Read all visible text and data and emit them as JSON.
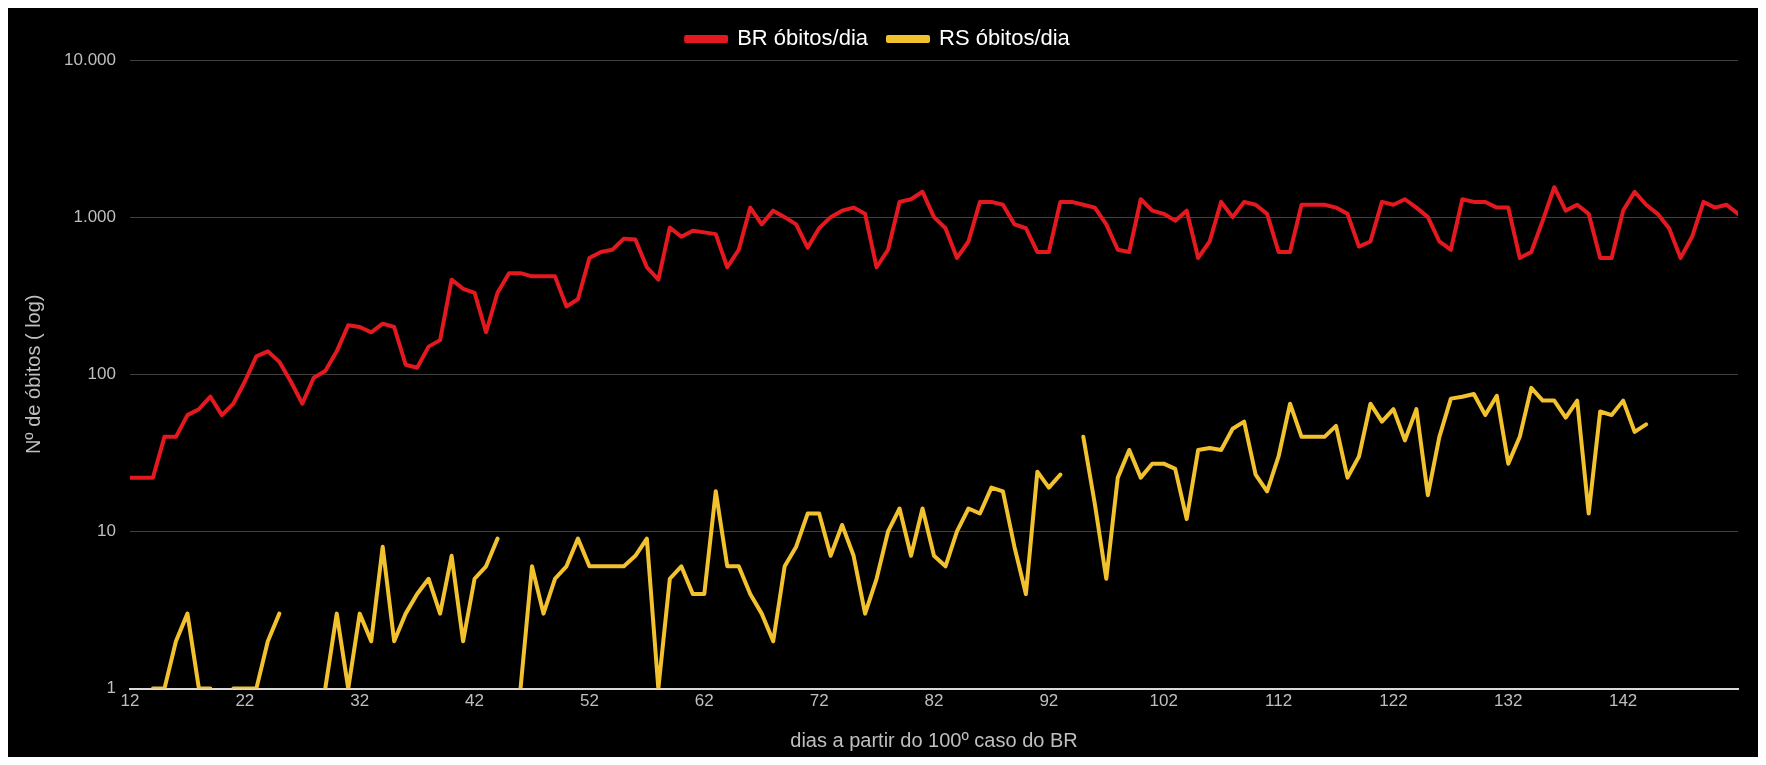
{
  "chart_data": {
    "type": "line",
    "xlabel": "dias a partir do 100º caso do BR",
    "ylabel": "Nº de óbitos ( log)",
    "x": [
      12,
      13,
      14,
      15,
      16,
      17,
      18,
      19,
      20,
      21,
      22,
      23,
      24,
      25,
      26,
      27,
      28,
      29,
      30,
      31,
      32,
      33,
      34,
      35,
      36,
      37,
      38,
      39,
      40,
      41,
      42,
      43,
      44,
      45,
      46,
      47,
      48,
      49,
      50,
      51,
      52,
      53,
      54,
      55,
      56,
      57,
      58,
      59,
      60,
      61,
      62,
      63,
      64,
      65,
      66,
      67,
      68,
      69,
      70,
      71,
      72,
      73,
      74,
      75,
      76,
      77,
      78,
      79,
      80,
      81,
      82,
      83,
      84,
      85,
      86,
      87,
      88,
      89,
      90,
      91,
      92,
      93,
      94,
      95,
      96,
      97,
      98,
      99,
      100,
      101,
      102,
      103,
      104,
      105,
      106,
      107,
      108,
      109,
      110,
      111,
      112,
      113,
      114,
      115,
      116,
      117,
      118,
      119,
      120,
      121,
      122,
      123,
      124,
      125,
      126,
      127,
      128,
      129,
      130,
      131,
      132,
      133,
      134,
      135,
      136,
      137,
      138,
      139,
      140,
      141,
      142,
      143,
      144,
      145,
      146,
      147,
      148,
      149,
      150,
      151,
      152
    ],
    "series": [
      {
        "name": "BR óbitos/dia",
        "color": "#e3191f",
        "values": [
          22,
          22,
          22,
          40,
          40,
          55,
          60,
          72,
          55,
          65,
          90,
          130,
          140,
          120,
          90,
          65,
          95,
          105,
          140,
          205,
          200,
          185,
          210,
          200,
          115,
          110,
          150,
          165,
          400,
          350,
          330,
          185,
          330,
          440,
          440,
          420,
          420,
          420,
          270,
          300,
          550,
          600,
          620,
          730,
          720,
          480,
          400,
          860,
          750,
          820,
          800,
          780,
          480,
          620,
          1150,
          900,
          1100,
          1000,
          900,
          640,
          850,
          1000,
          1100,
          1150,
          1050,
          480,
          620,
          1250,
          1300,
          1450,
          1000,
          850,
          550,
          700,
          1250,
          1250,
          1200,
          900,
          850,
          600,
          600,
          1250,
          1250,
          1200,
          1150,
          900,
          620,
          600,
          1300,
          1100,
          1050,
          950,
          1100,
          550,
          700,
          1250,
          1000,
          1250,
          1200,
          1050,
          600,
          600,
          1200,
          1200,
          1200,
          1150,
          1050,
          650,
          700,
          1250,
          1200,
          1300,
          1150,
          1000,
          700,
          620,
          1300,
          1250,
          1250,
          1150,
          1150,
          550,
          600,
          950,
          1550,
          1100,
          1200,
          1050,
          550,
          550,
          1100,
          1450,
          1200,
          1050,
          850,
          550,
          750,
          1250,
          1150,
          1200,
          1050
        ]
      },
      {
        "name": "RS óbitos/dia",
        "color": "#f2c12e",
        "values": [
          null,
          null,
          1,
          1,
          2,
          3,
          1,
          1,
          null,
          1,
          1,
          1,
          2,
          3,
          null,
          null,
          null,
          1,
          3,
          1,
          3,
          2,
          8,
          2,
          3,
          4,
          5,
          3,
          7,
          2,
          5,
          6,
          9,
          null,
          1,
          6,
          3,
          5,
          6,
          9,
          6,
          6,
          6,
          6,
          7,
          9,
          1,
          5,
          6,
          4,
          4,
          18,
          6,
          6,
          4,
          3,
          2,
          6,
          8,
          13,
          13,
          7,
          11,
          7,
          3,
          5,
          10,
          14,
          7,
          14,
          7,
          6,
          10,
          14,
          13,
          19,
          18,
          8,
          4,
          24,
          19,
          23,
          null,
          40,
          15,
          5,
          22,
          33,
          22,
          27,
          27,
          25,
          12,
          33,
          34,
          33,
          45,
          50,
          23,
          18,
          30,
          65,
          40,
          40,
          40,
          47,
          22,
          30,
          65,
          50,
          60,
          38,
          60,
          17,
          40,
          70,
          72,
          75,
          55,
          73,
          27,
          40,
          82,
          68,
          68,
          53,
          68,
          13,
          58,
          55,
          68,
          43,
          48,
          null,
          null,
          null,
          null,
          null,
          null,
          null,
          null
        ]
      }
    ],
    "log": "y",
    "xlim": [
      12,
      152
    ],
    "xticks": [
      12,
      22,
      32,
      42,
      52,
      62,
      72,
      82,
      92,
      102,
      112,
      122,
      132,
      142
    ],
    "ylim": [
      1,
      10000
    ],
    "yticks": [
      1,
      10,
      100,
      {
        "value": 1000,
        "label": "1.000"
      },
      {
        "value": 10000,
        "label": "10.000"
      }
    ],
    "grid": "y",
    "legend": "top",
    "marker": "none",
    "line_style": "solid"
  }
}
